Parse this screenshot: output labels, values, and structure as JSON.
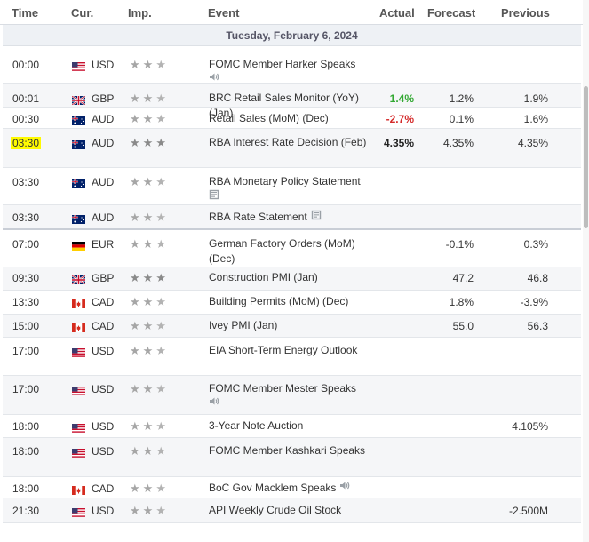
{
  "header": {
    "time": "Time",
    "currency": "Cur.",
    "importance": "Imp.",
    "event": "Event",
    "actual": "Actual",
    "forecast": "Forecast",
    "previous": "Previous"
  },
  "date_label": "Tuesday, February 6, 2024",
  "rows": [
    {
      "time": "00:00",
      "flag": "us-flag-icon",
      "currency": "USD",
      "importance": 2,
      "event": "FOMC Member Harker Speaks",
      "event_icon": "speaker-icon",
      "actual": "",
      "forecast": "",
      "previous": ""
    },
    {
      "time": "00:01",
      "flag": "gb-flag-icon",
      "currency": "GBP",
      "importance": 2,
      "event": "BRC Retail Sales Monitor (YoY) (Jan)",
      "event_icon": "",
      "actual": "1.4%",
      "actual_color": "green",
      "forecast": "1.2%",
      "previous": "1.9%"
    },
    {
      "time": "00:30",
      "flag": "au-flag-icon",
      "currency": "AUD",
      "importance": 2,
      "event": "Retail Sales (MoM) (Dec)",
      "event_icon": "",
      "actual": "-2.7%",
      "actual_color": "red",
      "forecast": "0.1%",
      "previous": "1.6%"
    },
    {
      "time": "03:30",
      "flag": "au-flag-icon",
      "currency": "AUD",
      "importance": 3,
      "event": "RBA Interest Rate Decision (Feb)",
      "event_icon": "",
      "actual": "4.35%",
      "actual_color": "black",
      "forecast": "4.35%",
      "previous": "4.35%"
    },
    {
      "time": "03:30",
      "flag": "au-flag-icon",
      "currency": "AUD",
      "importance": 2,
      "event": "RBA Monetary Policy Statement",
      "event_icon": "document-icon",
      "actual": "",
      "forecast": "",
      "previous": ""
    },
    {
      "time": "03:30",
      "flag": "au-flag-icon",
      "currency": "AUD",
      "importance": 2,
      "event": "RBA Rate Statement",
      "event_icon": "document-icon",
      "actual": "",
      "forecast": "",
      "previous": ""
    },
    {
      "time": "07:00",
      "flag": "de-flag-icon",
      "currency": "EUR",
      "importance": 2,
      "event": "German Factory Orders (MoM) (Dec)",
      "event_icon": "",
      "actual": "",
      "forecast": "-0.1%",
      "previous": "0.3%"
    },
    {
      "time": "09:30",
      "flag": "gb-flag-icon",
      "currency": "GBP",
      "importance": 3,
      "event": "Construction PMI (Jan)",
      "event_icon": "",
      "actual": "",
      "forecast": "47.2",
      "previous": "46.8"
    },
    {
      "time": "13:30",
      "flag": "ca-flag-icon",
      "currency": "CAD",
      "importance": 2,
      "event": "Building Permits (MoM) (Dec)",
      "event_icon": "",
      "actual": "",
      "forecast": "1.8%",
      "previous": "-3.9%"
    },
    {
      "time": "15:00",
      "flag": "ca-flag-icon",
      "currency": "CAD",
      "importance": 2,
      "event": "Ivey PMI (Jan)",
      "event_icon": "",
      "actual": "",
      "forecast": "55.0",
      "previous": "56.3"
    },
    {
      "time": "17:00",
      "flag": "us-flag-icon",
      "currency": "USD",
      "importance": 2,
      "event": "EIA Short-Term Energy Outlook",
      "event_icon": "",
      "actual": "",
      "forecast": "",
      "previous": ""
    },
    {
      "time": "17:00",
      "flag": "us-flag-icon",
      "currency": "USD",
      "importance": 2,
      "event": "FOMC Member Mester Speaks",
      "event_icon": "speaker-icon",
      "actual": "",
      "forecast": "",
      "previous": ""
    },
    {
      "time": "18:00",
      "flag": "us-flag-icon",
      "currency": "USD",
      "importance": 2,
      "event": "3-Year Note Auction",
      "event_icon": "",
      "actual": "",
      "forecast": "",
      "previous": "4.105%"
    },
    {
      "time": "18:00",
      "flag": "us-flag-icon",
      "currency": "USD",
      "importance": 2,
      "event": "FOMC Member Kashkari Speaks",
      "event_icon": "",
      "actual": "",
      "forecast": "",
      "previous": ""
    },
    {
      "time": "18:00",
      "flag": "ca-flag-icon",
      "currency": "CAD",
      "importance": 2,
      "event": "BoC Gov Macklem Speaks",
      "event_icon": "speaker-icon",
      "actual": "",
      "forecast": "",
      "previous": ""
    },
    {
      "time": "21:30",
      "flag": "us-flag-icon",
      "currency": "USD",
      "importance": 2,
      "event": "API Weekly Crude Oil Stock",
      "event_icon": "",
      "actual": "",
      "forecast": "",
      "previous": "-2.500M"
    }
  ],
  "colors": {
    "actual_green": "#32a832",
    "actual_red": "#d42a2a",
    "highlight": "#fffa00",
    "date_row_bg": "#eef1f5"
  }
}
